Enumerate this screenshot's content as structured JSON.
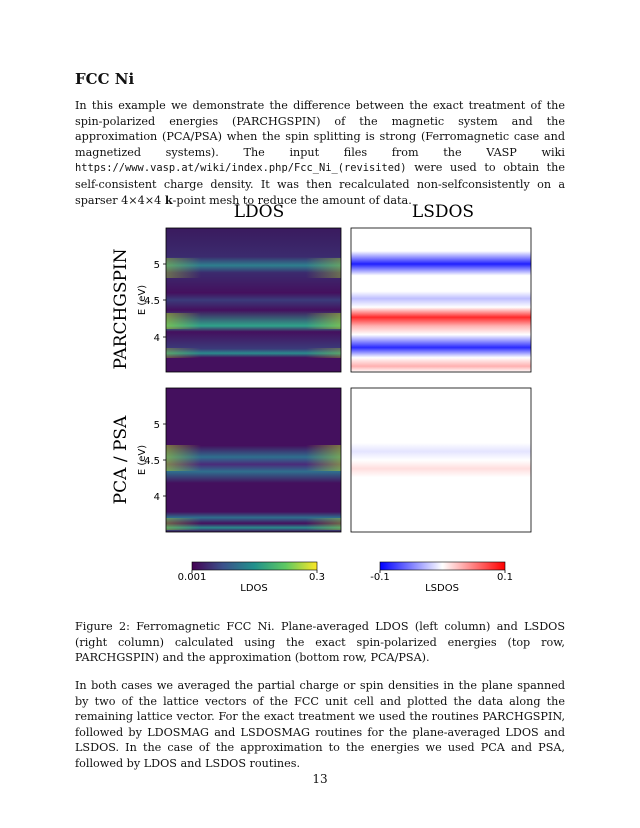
{
  "section": {
    "heading": "FCC Ni"
  },
  "intro": {
    "text_a": "In this example we demonstrate the difference between the exact treatment of the spin-polarized energies (PARCHGSPIN) of the magnetic system and the approximation (PCA/PSA) when the spin splitting is strong (Ferromagnetic case and magnetized systems). The input files from the VASP wiki ",
    "url": "https://www.vasp.at/wiki/index.php/Fcc_Ni_(revisited)",
    "text_b": " were used to obtain the self-consistent charge density. It was then recalculated non-selfconsistently on a sparser 4×4×4 ",
    "kpoint": "k",
    "text_c": "-point mesh to reduce the amount of data."
  },
  "figure": {
    "col_titles": [
      "LDOS",
      "LSDOS"
    ],
    "row_titles": [
      "PARCHGSPIN",
      "PCA / PSA"
    ],
    "ylabel": "E (eV)",
    "yticks": [
      "5",
      "4.5",
      "4"
    ],
    "colorbars": [
      {
        "label": "LDOS",
        "min": "0.001",
        "max": "0.3",
        "colormap": "viridis"
      },
      {
        "label": "LSDOS",
        "min": "-0.1",
        "max": "0.1",
        "colormap": "bwr"
      }
    ]
  },
  "caption": "Figure 2: Ferromagnetic FCC Ni. Plane-averaged LDOS (left column) and LSDOS (right column) calculated using the exact spin-polarized energies (top row, PARCHGSPIN) and the approximation (bottom row, PCA/PSA).",
  "body2": "In both cases we averaged the partial charge or spin densities in the plane spanned by two of the lattice vectors of the FCC unit cell and plotted the data along the remaining lattice vector. For the exact treatment we used the routines PARCHGSPIN, followed by LDOSMAG and LSDOSMAG routines for the plane-averaged LDOS and LSDOS. In the case of the approximation to the energies we used PCA and PSA, followed by LDOS and LSDOS routines.",
  "page_number": "13"
}
